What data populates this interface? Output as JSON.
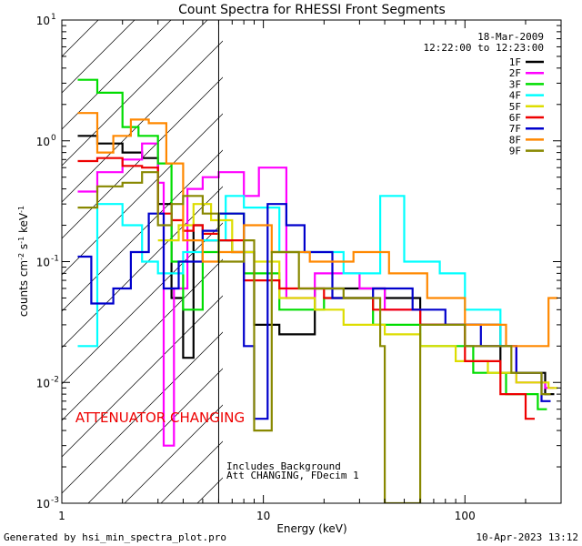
{
  "chart_data": {
    "type": "line",
    "title": "Count Spectra for RHESSI Front Segments",
    "xlabel": "Energy (keV)",
    "ylabel_parts": [
      "counts cm",
      "-2",
      " s",
      "-1",
      " keV",
      "-1"
    ],
    "x_scale": "log",
    "y_scale": "log",
    "xlim": [
      1,
      300
    ],
    "ylim": [
      0.001,
      10
    ],
    "x_ticks": [
      {
        "v": 1,
        "label": "1"
      },
      {
        "v": 10,
        "label": "10"
      },
      {
        "v": 100,
        "label": "100"
      }
    ],
    "y_ticks": [
      {
        "v": 0.001,
        "base": "10",
        "exp": "-3"
      },
      {
        "v": 0.01,
        "base": "10",
        "exp": "-2"
      },
      {
        "v": 0.1,
        "base": "10",
        "exp": "-1"
      },
      {
        "v": 1,
        "base": "10",
        "exp": "0"
      },
      {
        "v": 10,
        "base": "10",
        "exp": "1"
      }
    ],
    "attenuator_region_max": 6,
    "date": "18-Mar-2009",
    "time_range": "12:22:00 to 12:23:00",
    "attenuator_label": "ATTENUATOR CHANGING",
    "notes": [
      "Includes Background",
      "Att CHANGING, FDecim 1"
    ],
    "series": [
      {
        "name": "1F",
        "color": "#000000",
        "points": [
          [
            1.2,
            1.1
          ],
          [
            1.5,
            0.95
          ],
          [
            2.0,
            0.8
          ],
          [
            2.5,
            0.72
          ],
          [
            3.0,
            0.3
          ],
          [
            3.5,
            0.05
          ],
          [
            4.0,
            0.016
          ],
          [
            4.5,
            0.2
          ],
          [
            5.0,
            0.15
          ],
          [
            7.0,
            0.12
          ],
          [
            9.0,
            0.03
          ],
          [
            12.0,
            0.025
          ],
          [
            18.0,
            0.06
          ],
          [
            28.0,
            0.06
          ],
          [
            40.0,
            0.05
          ],
          [
            60.0,
            0.03
          ],
          [
            90.0,
            0.03
          ],
          [
            150.0,
            0.012
          ],
          [
            250.0,
            0.008
          ]
        ]
      },
      {
        "name": "2F",
        "color": "#ff00ff",
        "points": [
          [
            1.2,
            0.38
          ],
          [
            1.5,
            0.55
          ],
          [
            2.0,
            0.7
          ],
          [
            2.5,
            0.95
          ],
          [
            3.0,
            0.45
          ],
          [
            3.2,
            0.003
          ],
          [
            3.6,
            0.06
          ],
          [
            4.2,
            0.4
          ],
          [
            5.0,
            0.5
          ],
          [
            6.0,
            0.55
          ],
          [
            8.0,
            0.35
          ],
          [
            9.5,
            0.6
          ],
          [
            13.0,
            0.05
          ],
          [
            18.0,
            0.08
          ],
          [
            30.0,
            0.06
          ],
          [
            40.0,
            0.04
          ],
          [
            60.0,
            0.03
          ],
          [
            100.0,
            0.02
          ],
          [
            180.0,
            0.01
          ],
          [
            250.0,
            0.009
          ]
        ]
      },
      {
        "name": "3F",
        "color": "#00dd00",
        "points": [
          [
            1.2,
            3.2
          ],
          [
            1.5,
            2.5
          ],
          [
            2.0,
            1.3
          ],
          [
            2.4,
            1.1
          ],
          [
            3.0,
            0.65
          ],
          [
            3.5,
            0.1
          ],
          [
            4.0,
            0.04
          ],
          [
            5.0,
            0.12
          ],
          [
            6.0,
            0.25
          ],
          [
            8.0,
            0.08
          ],
          [
            12.0,
            0.04
          ],
          [
            20.0,
            0.05
          ],
          [
            35.0,
            0.03
          ],
          [
            60.0,
            0.02
          ],
          [
            110.0,
            0.012
          ],
          [
            160.0,
            0.008
          ],
          [
            230.0,
            0.006
          ]
        ]
      },
      {
        "name": "4F",
        "color": "#00ffff",
        "points": [
          [
            1.2,
            0.02
          ],
          [
            1.5,
            0.3
          ],
          [
            2.0,
            0.2
          ],
          [
            2.5,
            0.1
          ],
          [
            3.0,
            0.08
          ],
          [
            4.0,
            0.12
          ],
          [
            5.0,
            0.15
          ],
          [
            6.5,
            0.35
          ],
          [
            8.0,
            0.28
          ],
          [
            12.0,
            0.12
          ],
          [
            25.0,
            0.08
          ],
          [
            38.0,
            0.35
          ],
          [
            50.0,
            0.1
          ],
          [
            75.0,
            0.08
          ],
          [
            100.0,
            0.04
          ],
          [
            150.0,
            0.02
          ]
        ]
      },
      {
        "name": "5F",
        "color": "#dddd00",
        "points": [
          [
            3.0,
            0.15
          ],
          [
            3.8,
            0.2
          ],
          [
            4.5,
            0.3
          ],
          [
            5.5,
            0.22
          ],
          [
            7.0,
            0.12
          ],
          [
            9.0,
            0.1
          ],
          [
            12.0,
            0.05
          ],
          [
            18.0,
            0.04
          ],
          [
            25.0,
            0.03
          ],
          [
            40.0,
            0.025
          ],
          [
            60.0,
            0.02
          ],
          [
            90.0,
            0.015
          ],
          [
            130.0,
            0.012
          ],
          [
            180.0,
            0.01
          ],
          [
            260.0,
            0.009
          ]
        ]
      },
      {
        "name": "6F",
        "color": "#ee0000",
        "points": [
          [
            1.2,
            0.68
          ],
          [
            1.5,
            0.72
          ],
          [
            2.0,
            0.62
          ],
          [
            2.5,
            0.6
          ],
          [
            3.0,
            0.25
          ],
          [
            3.5,
            0.22
          ],
          [
            4.0,
            0.18
          ],
          [
            4.5,
            0.2
          ],
          [
            5.0,
            0.17
          ],
          [
            6.0,
            0.15
          ],
          [
            8.0,
            0.07
          ],
          [
            12.0,
            0.06
          ],
          [
            20.0,
            0.05
          ],
          [
            35.0,
            0.04
          ],
          [
            60.0,
            0.03
          ],
          [
            100.0,
            0.015
          ],
          [
            150.0,
            0.008
          ],
          [
            200.0,
            0.005
          ]
        ]
      },
      {
        "name": "7F",
        "color": "#0000cc",
        "points": [
          [
            1.2,
            0.11
          ],
          [
            1.4,
            0.045
          ],
          [
            1.8,
            0.06
          ],
          [
            2.2,
            0.12
          ],
          [
            2.7,
            0.25
          ],
          [
            3.2,
            0.06
          ],
          [
            3.8,
            0.1
          ],
          [
            5.0,
            0.18
          ],
          [
            6.0,
            0.25
          ],
          [
            8.0,
            0.02
          ],
          [
            9.0,
            0.005
          ],
          [
            10.5,
            0.3
          ],
          [
            13.0,
            0.2
          ],
          [
            16.0,
            0.12
          ],
          [
            22.0,
            0.05
          ],
          [
            35.0,
            0.06
          ],
          [
            55.0,
            0.04
          ],
          [
            80.0,
            0.03
          ],
          [
            120.0,
            0.02
          ],
          [
            180.0,
            0.012
          ],
          [
            240.0,
            0.007
          ]
        ]
      },
      {
        "name": "8F",
        "color": "#ff8800",
        "points": [
          [
            1.2,
            1.7
          ],
          [
            1.5,
            0.8
          ],
          [
            1.8,
            1.1
          ],
          [
            2.2,
            1.5
          ],
          [
            2.7,
            1.4
          ],
          [
            3.3,
            0.65
          ],
          [
            4.0,
            0.15
          ],
          [
            5.0,
            0.1
          ],
          [
            6.0,
            0.12
          ],
          [
            8.0,
            0.2
          ],
          [
            11.0,
            0.12
          ],
          [
            17.0,
            0.1
          ],
          [
            28.0,
            0.12
          ],
          [
            42.0,
            0.08
          ],
          [
            65.0,
            0.05
          ],
          [
            100.0,
            0.03
          ],
          [
            160.0,
            0.02
          ],
          [
            260.0,
            0.05
          ]
        ]
      },
      {
        "name": "9F",
        "color": "#888800",
        "points": [
          [
            1.2,
            0.28
          ],
          [
            1.5,
            0.42
          ],
          [
            2.0,
            0.45
          ],
          [
            2.5,
            0.55
          ],
          [
            3.0,
            0.2
          ],
          [
            3.5,
            0.3
          ],
          [
            4.0,
            0.35
          ],
          [
            5.0,
            0.25
          ],
          [
            6.0,
            0.1
          ],
          [
            8.0,
            0.15
          ],
          [
            9.0,
            0.004
          ],
          [
            11.0,
            0.12
          ],
          [
            15.0,
            0.06
          ],
          [
            25.0,
            0.05
          ],
          [
            38.0,
            0.02
          ],
          [
            40.0,
            0.001
          ],
          [
            60.0,
            0.03
          ],
          [
            100.0,
            0.02
          ],
          [
            170.0,
            0.012
          ],
          [
            240.0,
            0.008
          ]
        ]
      }
    ]
  },
  "footer": {
    "left": "Generated by hsi_min_spectra_plot.pro",
    "right": "10-Apr-2023 13:12"
  }
}
